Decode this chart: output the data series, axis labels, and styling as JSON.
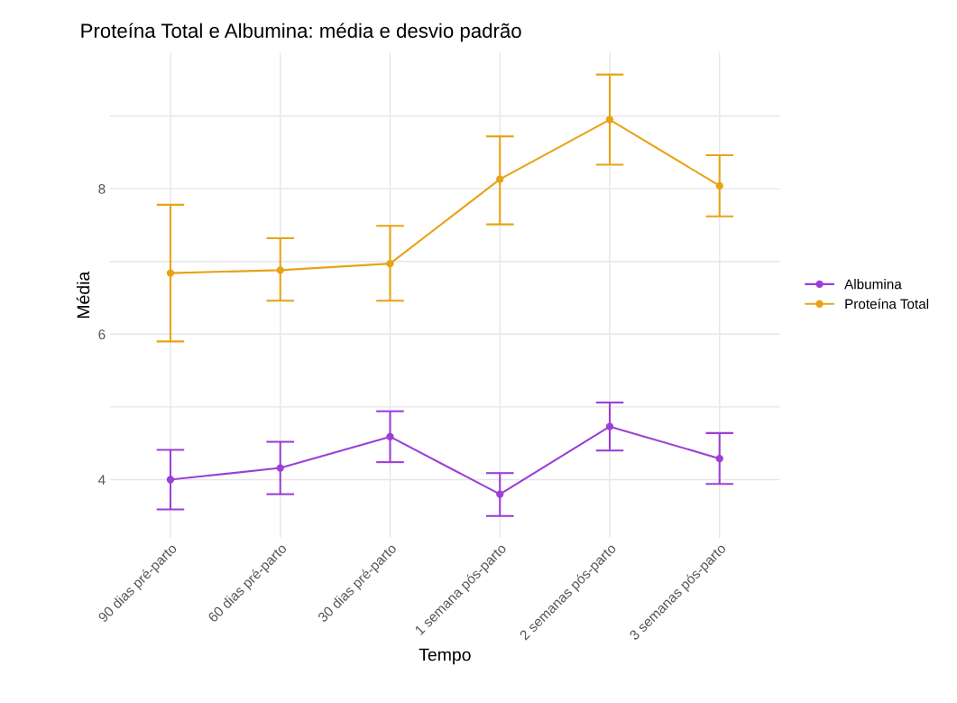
{
  "chart_data": {
    "type": "line",
    "title": "Proteína Total e Albumina: média e desvio padrão",
    "xlabel": "Tempo",
    "ylabel": "Média",
    "categories": [
      "90 dias pré-parto",
      "60 dias pré-parto",
      "30 dias pré-parto",
      "1 semana pós-parto",
      "2 semanas pós-parto",
      "3 semanas pós-parto"
    ],
    "series": [
      {
        "name": "Albumina",
        "color": "#9b3fd6",
        "values": [
          4.0,
          4.16,
          4.59,
          3.8,
          4.73,
          4.29
        ],
        "errors": [
          [
            3.59,
            4.41
          ],
          [
            3.8,
            4.52
          ],
          [
            4.24,
            4.94
          ],
          [
            3.5,
            4.09
          ],
          [
            4.4,
            5.06
          ],
          [
            3.94,
            4.64
          ]
        ]
      },
      {
        "name": "Proteína Total",
        "color": "#e8a317",
        "values": [
          6.84,
          6.88,
          6.97,
          8.13,
          8.95,
          8.04
        ],
        "errors": [
          [
            5.9,
            7.78
          ],
          [
            6.46,
            7.32
          ],
          [
            6.46,
            7.49
          ],
          [
            7.51,
            8.72
          ],
          [
            8.33,
            9.57
          ],
          [
            7.62,
            8.46
          ]
        ]
      }
    ],
    "ylim": [
      3.2,
      9.87
    ],
    "yticks": [
      4,
      {
        "value": 5,
        "label": null
      },
      6,
      {
        "value": 7,
        "label": null
      },
      8,
      {
        "value": 9,
        "label": null
      }
    ],
    "grid": true,
    "legend": "right",
    "marker": "circle",
    "line_style": "solid"
  }
}
